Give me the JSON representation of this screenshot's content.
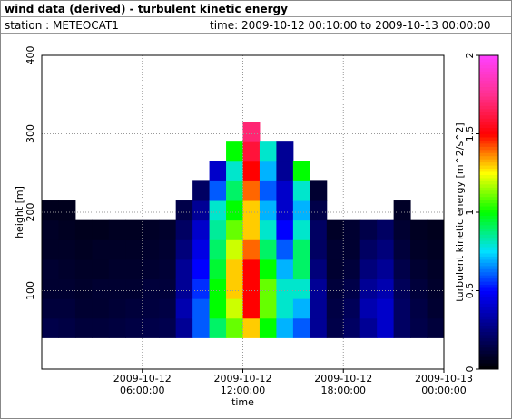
{
  "chart_data": {
    "type": "heatmap",
    "title": "wind data (derived) - turbulent kinetic energy",
    "station": "station : METEOCAT1",
    "period": "time: 2009-10-12 00:10:00 to 2009-10-13 00:00:00",
    "x_label": "time",
    "y_label": "height [m]",
    "colorbar_label": "turbulent kinetic energy [m^2/s^2]",
    "xlim": [
      0,
      24
    ],
    "xticks": [
      {
        "value": 6,
        "label": "2009-10-12 06:00:00"
      },
      {
        "value": 12,
        "label": "2009-10-12 12:00:00"
      },
      {
        "value": 18,
        "label": "2009-10-12 18:00:00"
      },
      {
        "value": 24,
        "label": "2009-10-13 00:00:00"
      }
    ],
    "ylim": [
      0,
      400
    ],
    "yticks": [
      100,
      200,
      300,
      400
    ],
    "zlim": [
      0,
      2
    ],
    "zticks": [
      0,
      0.5,
      1,
      1.5,
      2
    ],
    "grid": true,
    "colorscale": [
      [
        0,
        "#000000"
      ],
      [
        0.25,
        "#00007a"
      ],
      [
        0.5,
        "#0000ff"
      ],
      [
        0.75,
        "#00e0ff"
      ],
      [
        1,
        "#00ff00"
      ],
      [
        1.25,
        "#ffff00"
      ],
      [
        1.5,
        "#ff0000"
      ],
      [
        1.75,
        "#ff3090"
      ],
      [
        2,
        "#ff40ff"
      ]
    ],
    "x_bins": [
      0,
      1,
      2,
      3,
      4,
      5,
      6,
      7,
      8,
      9,
      10,
      11,
      12,
      13,
      14,
      15,
      16,
      17,
      18,
      19,
      20,
      21,
      22,
      23,
      24
    ],
    "y_bins": [
      40,
      65,
      90,
      115,
      140,
      165,
      190,
      215,
      240,
      265,
      290,
      315
    ],
    "values": [
      [
        0.15,
        0.12,
        0.1,
        0.1,
        0.08,
        0.08,
        0.06,
        null,
        null,
        null,
        null
      ],
      [
        0.14,
        0.12,
        0.1,
        0.09,
        0.08,
        0.07,
        0.06,
        null,
        null,
        null,
        null
      ],
      [
        0.12,
        0.1,
        0.09,
        0.08,
        0.07,
        0.06,
        null,
        null,
        null,
        null,
        null
      ],
      [
        0.12,
        0.1,
        0.1,
        0.08,
        0.08,
        0.06,
        null,
        null,
        null,
        null,
        null
      ],
      [
        0.13,
        0.11,
        0.1,
        0.09,
        0.08,
        0.07,
        null,
        null,
        null,
        null,
        null
      ],
      [
        0.14,
        0.12,
        0.1,
        0.09,
        0.08,
        0.07,
        null,
        null,
        null,
        null,
        null
      ],
      [
        0.15,
        0.13,
        0.12,
        0.1,
        0.09,
        0.08,
        null,
        null,
        null,
        null,
        null
      ],
      [
        0.16,
        0.14,
        0.12,
        0.11,
        0.1,
        0.09,
        null,
        null,
        null,
        null,
        null
      ],
      [
        0.3,
        0.35,
        0.3,
        0.3,
        0.25,
        0.2,
        0.15,
        null,
        null,
        null,
        null
      ],
      [
        0.6,
        0.6,
        0.55,
        0.5,
        0.45,
        0.4,
        0.3,
        0.2,
        null,
        null,
        null
      ],
      [
        0.9,
        1.0,
        1.0,
        0.95,
        0.9,
        0.85,
        0.8,
        0.6,
        0.4,
        null,
        null
      ],
      [
        1.1,
        1.2,
        1.3,
        1.3,
        1.2,
        1.1,
        1.0,
        0.9,
        0.8,
        1.0,
        null
      ],
      [
        1.3,
        1.5,
        1.5,
        1.5,
        1.4,
        1.3,
        1.3,
        1.4,
        1.5,
        1.6,
        1.7
      ],
      [
        1.0,
        1.1,
        1.1,
        1.0,
        0.9,
        0.8,
        0.7,
        0.6,
        0.7,
        0.8,
        null
      ],
      [
        0.7,
        0.8,
        0.8,
        0.7,
        0.6,
        0.5,
        0.4,
        0.4,
        0.3,
        0.3,
        null
      ],
      [
        0.6,
        0.7,
        0.8,
        0.9,
        0.9,
        0.8,
        0.7,
        0.8,
        1.0,
        null,
        null
      ],
      [
        0.3,
        0.3,
        0.3,
        0.25,
        0.2,
        0.2,
        0.15,
        0.1,
        null,
        null,
        null
      ],
      [
        0.15,
        0.14,
        0.12,
        0.1,
        0.1,
        0.08,
        null,
        null,
        null,
        null,
        null
      ],
      [
        0.2,
        0.18,
        0.15,
        0.12,
        0.1,
        0.1,
        null,
        null,
        null,
        null,
        null
      ],
      [
        0.3,
        0.35,
        0.3,
        0.25,
        0.2,
        0.15,
        null,
        null,
        null,
        null,
        null
      ],
      [
        0.4,
        0.4,
        0.35,
        0.3,
        0.25,
        0.2,
        null,
        null,
        null,
        null,
        null
      ],
      [
        0.2,
        0.2,
        0.18,
        0.15,
        0.12,
        0.1,
        0.08,
        null,
        null,
        null,
        null
      ],
      [
        0.15,
        0.14,
        0.12,
        0.1,
        0.08,
        0.07,
        null,
        null,
        null,
        null,
        null
      ],
      [
        0.12,
        0.1,
        0.09,
        0.08,
        0.07,
        0.06,
        null,
        null,
        null,
        null,
        null
      ]
    ]
  }
}
